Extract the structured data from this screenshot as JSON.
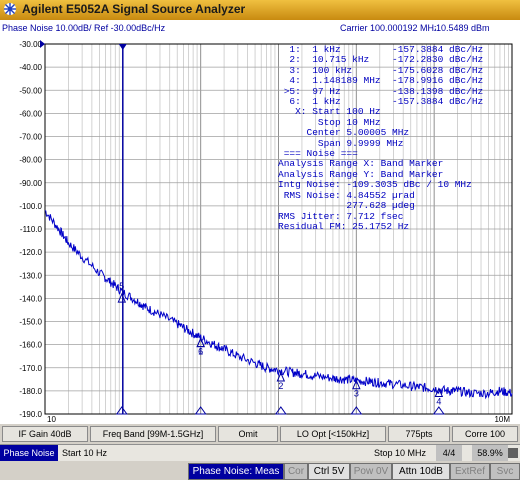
{
  "app": {
    "title": "Agilent E5052A Signal Source Analyzer"
  },
  "trace": {
    "label": "Phase Noise 10.00dB/ Ref -30.00dBc/Hz",
    "carrier": "Carrier 100.000192 MHz",
    "carrier_power": "10.5489 dBm"
  },
  "markers_text": [
    "  1:  1 kHz         -157.3884 dBc/Hz",
    "  2:  10.715 kHz    -172.2830 dBc/Hz",
    "  3:  100 kHz       -175.6028 dBc/Hz",
    "  4:  1.148189 MHz  -178.9916 dBc/Hz",
    " >5:  97 Hz         -138.1398 dBc/Hz",
    "  6:  1 kHz         -157.3884 dBc/Hz",
    "   X: Start 100 Hz",
    "       Stop 10 MHz",
    "     Center 5.00005 MHz",
    "       Span 9.9999 MHz",
    " === Noise ===",
    "Analysis Range X: Band Marker",
    "Analysis Range Y: Band Marker",
    "Intg Noise: -109.3035 dBc / 10 MHz",
    " RMS Noise: 4.84552 µrad",
    "            277.628 µdeg",
    "RMS Jitter: 7.712 fsec",
    "Residual FM: 25.1752 Hz"
  ],
  "chart_data": {
    "type": "line",
    "xscale": "log",
    "xlim": [
      10,
      10000000
    ],
    "ylim": [
      -190,
      -30
    ],
    "y_ticks": [
      "-30.00",
      "-40.00",
      "-50.00",
      "-60.00",
      "-70.00",
      "-80.00",
      "-90.00",
      "-100.0",
      "-110.0",
      "-120.0",
      "-130.0",
      "-140.0",
      "-150.0",
      "-160.0",
      "-170.0",
      "-180.0",
      "-190.0"
    ],
    "x_tick_labels": [
      "10",
      "10M"
    ],
    "grid": true,
    "series": [
      {
        "x": [
          10,
          15,
          20,
          30,
          50,
          70,
          97,
          150,
          200,
          300,
          500,
          700,
          1000,
          1500,
          2000,
          3000,
          5000,
          7000,
          10000,
          15000,
          20000,
          30000,
          50000,
          70000,
          100000,
          150000,
          200000,
          300000,
          500000,
          700000,
          1000000,
          1500000,
          2000000,
          3000000,
          5000000,
          7000000,
          10000000
        ],
        "y": [
          -102,
          -110,
          -116,
          -122,
          -129,
          -133,
          -137,
          -141,
          -144,
          -147,
          -151,
          -154,
          -157,
          -160,
          -162,
          -165,
          -168,
          -170,
          -171,
          -172,
          -172.5,
          -173.5,
          -174.5,
          -175,
          -175.5,
          -176,
          -176.5,
          -177,
          -178,
          -178.5,
          -179,
          -180,
          -180,
          -181,
          -181,
          -180,
          -181
        ]
      }
    ],
    "markers": [
      {
        "label": "1",
        "x": 1000,
        "y": -157.3884
      },
      {
        "label": "2",
        "x": 10715,
        "y": -172.283
      },
      {
        "label": "3",
        "x": 100000,
        "y": -175.6028
      },
      {
        "label": "4",
        "x": 1148189,
        "y": -178.9916
      },
      {
        "label": "5",
        "x": 97,
        "y": -138.1398
      },
      {
        "label": "6",
        "x": 1000,
        "y": -157.3884
      }
    ]
  },
  "fbar": {
    "if_gain": "IF Gain 40dB",
    "freq_band": "Freq Band [99M-1.5GHz]",
    "omit": "Omit",
    "lo_opt": "LO Opt [<150kHz]",
    "points": "775pts",
    "corre": "Corre 100"
  },
  "status": {
    "mode": "Phase Noise",
    "start": "Start 10 Hz",
    "stop": "Stop 10 MHz",
    "progress": "4/4",
    "percent": "58.9%"
  },
  "bottom": {
    "meas": "Phase Noise: Meas",
    "cor": "Cor",
    "ctrl": "Ctrl 5V",
    "pow": "Pow 0V",
    "attn": "Attn 10dB",
    "extref": "ExtRef",
    "svc": "Svc"
  }
}
